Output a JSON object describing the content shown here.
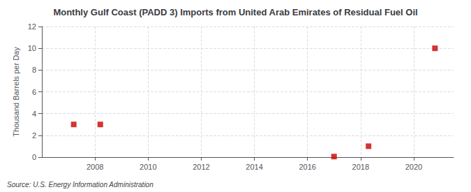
{
  "chart_data": {
    "type": "scatter",
    "title": "Monthly Gulf Coast (PADD 3) Imports from United Arab Emirates of Residual Fuel Oil",
    "ylabel": "Thousand Barrels per Day",
    "annotation": "Source: U.S. Energy Information Administration",
    "x": [
      2007.2,
      2008.2,
      2017.0,
      2018.3,
      2020.8
    ],
    "values": [
      3.0,
      3.0,
      0.05,
      1.0,
      10.0
    ],
    "color": "#cc0000",
    "marker": "square",
    "xlim": [
      2006.0,
      2021.5
    ],
    "ylim": [
      0,
      12
    ],
    "xticks": [
      2008,
      2010,
      2012,
      2014,
      2016,
      2018,
      2020
    ],
    "yticks": [
      0,
      2,
      4,
      6,
      8,
      10,
      12
    ],
    "grid": true
  }
}
